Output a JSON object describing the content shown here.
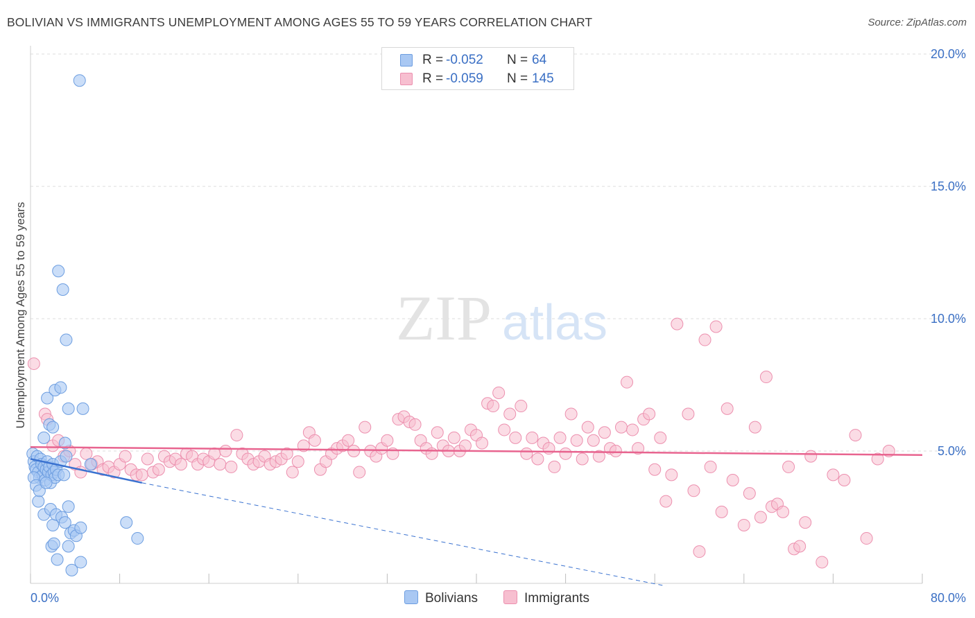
{
  "title": "BOLIVIAN VS IMMIGRANTS UNEMPLOYMENT AMONG AGES 55 TO 59 YEARS CORRELATION CHART",
  "source": "Source: ZipAtlas.com",
  "watermark": {
    "zip": "ZIP",
    "atlas": "atlas"
  },
  "legend": {
    "bolivians": {
      "r_label": "R =",
      "r_value": "-0.052",
      "n_label": "N =",
      "n_value": "64"
    },
    "immigrants": {
      "r_label": "R =",
      "r_value": "-0.059",
      "n_label": "N =",
      "n_value": "145"
    }
  },
  "bottom_legend": {
    "bolivians": "Bolivians",
    "immigrants": "Immigrants"
  },
  "colors": {
    "bolivians_fill": "#a9c8f3",
    "bolivians_stroke": "#6c9de0",
    "bolivians_line": "#3a72d0",
    "immigrants_fill": "#f7bfd0",
    "immigrants_stroke": "#ec8fae",
    "immigrants_line": "#e8648f",
    "axis_text": "#3a6fc4",
    "grid": "#dddddd"
  },
  "chart_data": {
    "type": "scatter",
    "title": "BOLIVIAN VS IMMIGRANTS UNEMPLOYMENT AMONG AGES 55 TO 59 YEARS CORRELATION CHART",
    "xlabel": "",
    "ylabel": "Unemployment Among Ages 55 to 59 years",
    "xlim": [
      0,
      80
    ],
    "ylim": [
      0,
      20
    ],
    "x_tick_labels": [
      "0.0%",
      "80.0%"
    ],
    "y_ticks": [
      5,
      10,
      15,
      20
    ],
    "y_tick_labels": [
      "5.0%",
      "10.0%",
      "15.0%",
      "20.0%"
    ],
    "grid": true,
    "series": [
      {
        "name": "Bolivians",
        "R": -0.052,
        "N": 64,
        "trend": {
          "x": [
            0,
            10
          ],
          "y": [
            4.7,
            3.8
          ]
        },
        "trend_extension": {
          "x": [
            10,
            57
          ],
          "y": [
            3.8,
            -0.1
          ]
        },
        "points": [
          [
            0.2,
            4.9
          ],
          [
            0.3,
            4.6
          ],
          [
            0.4,
            4.4
          ],
          [
            0.5,
            4.3
          ],
          [
            0.6,
            4.8
          ],
          [
            0.7,
            4.2
          ],
          [
            0.8,
            4.0
          ],
          [
            0.9,
            4.7
          ],
          [
            1.0,
            4.5
          ],
          [
            1.1,
            4.1
          ],
          [
            1.2,
            4.4
          ],
          [
            1.3,
            3.9
          ],
          [
            1.4,
            4.3
          ],
          [
            1.5,
            4.6
          ],
          [
            1.6,
            4.2
          ],
          [
            1.7,
            4.4
          ],
          [
            1.8,
            3.8
          ],
          [
            1.9,
            4.1
          ],
          [
            2.0,
            4.5
          ],
          [
            2.1,
            4.2
          ],
          [
            2.2,
            4.0
          ],
          [
            2.3,
            4.3
          ],
          [
            2.5,
            4.1
          ],
          [
            2.7,
            4.6
          ],
          [
            3.0,
            4.1
          ],
          [
            3.2,
            4.8
          ],
          [
            0.3,
            4.0
          ],
          [
            0.5,
            3.7
          ],
          [
            0.7,
            3.1
          ],
          [
            0.8,
            3.5
          ],
          [
            1.2,
            2.6
          ],
          [
            1.4,
            3.8
          ],
          [
            1.8,
            2.8
          ],
          [
            2.0,
            2.2
          ],
          [
            2.3,
            2.6
          ],
          [
            2.8,
            2.5
          ],
          [
            3.1,
            2.3
          ],
          [
            3.4,
            2.9
          ],
          [
            3.6,
            1.9
          ],
          [
            3.9,
            2.0
          ],
          [
            4.1,
            1.8
          ],
          [
            4.5,
            2.1
          ],
          [
            1.9,
            1.4
          ],
          [
            2.1,
            1.5
          ],
          [
            2.4,
            0.9
          ],
          [
            3.4,
            1.4
          ],
          [
            3.7,
            0.5
          ],
          [
            4.5,
            0.8
          ],
          [
            8.6,
            2.3
          ],
          [
            9.6,
            1.7
          ],
          [
            2.5,
            11.8
          ],
          [
            2.9,
            11.1
          ],
          [
            3.2,
            9.2
          ],
          [
            1.5,
            7.0
          ],
          [
            2.2,
            7.3
          ],
          [
            2.7,
            7.4
          ],
          [
            3.4,
            6.6
          ],
          [
            4.7,
            6.6
          ],
          [
            1.7,
            6.0
          ],
          [
            2.0,
            5.9
          ],
          [
            1.2,
            5.5
          ],
          [
            3.1,
            5.3
          ],
          [
            5.4,
            4.5
          ],
          [
            4.4,
            19.0
          ]
        ]
      },
      {
        "name": "Immigrants",
        "R": -0.059,
        "N": 145,
        "trend": {
          "x": [
            0,
            80
          ],
          "y": [
            5.15,
            4.85
          ]
        },
        "points": [
          [
            0.3,
            8.3
          ],
          [
            1.3,
            6.4
          ],
          [
            1.5,
            6.2
          ],
          [
            2.0,
            5.2
          ],
          [
            2.5,
            5.4
          ],
          [
            3.0,
            4.8
          ],
          [
            3.5,
            5.0
          ],
          [
            4.0,
            4.5
          ],
          [
            4.5,
            4.2
          ],
          [
            5.0,
            4.9
          ],
          [
            5.5,
            4.5
          ],
          [
            6.0,
            4.6
          ],
          [
            6.5,
            4.3
          ],
          [
            7.0,
            4.4
          ],
          [
            7.5,
            4.2
          ],
          [
            8.0,
            4.5
          ],
          [
            8.5,
            4.8
          ],
          [
            9.0,
            4.3
          ],
          [
            9.5,
            4.1
          ],
          [
            10.0,
            4.1
          ],
          [
            10.5,
            4.7
          ],
          [
            11.0,
            4.2
          ],
          [
            11.5,
            4.3
          ],
          [
            12.0,
            4.8
          ],
          [
            12.5,
            4.6
          ],
          [
            13.0,
            4.7
          ],
          [
            13.5,
            4.5
          ],
          [
            14.0,
            4.9
          ],
          [
            14.5,
            4.8
          ],
          [
            15.0,
            4.5
          ],
          [
            15.5,
            4.7
          ],
          [
            16.0,
            4.6
          ],
          [
            16.5,
            4.9
          ],
          [
            17.0,
            4.5
          ],
          [
            17.5,
            5.0
          ],
          [
            18.0,
            4.4
          ],
          [
            18.5,
            5.6
          ],
          [
            19.0,
            4.9
          ],
          [
            19.5,
            4.7
          ],
          [
            20.0,
            4.5
          ],
          [
            20.5,
            4.6
          ],
          [
            21.0,
            4.8
          ],
          [
            21.5,
            4.5
          ],
          [
            22.0,
            4.6
          ],
          [
            22.5,
            4.7
          ],
          [
            23.0,
            4.9
          ],
          [
            23.5,
            4.2
          ],
          [
            24.0,
            4.6
          ],
          [
            24.5,
            5.2
          ],
          [
            25.0,
            5.7
          ],
          [
            25.5,
            5.4
          ],
          [
            26.0,
            4.3
          ],
          [
            26.5,
            4.6
          ],
          [
            27.0,
            4.9
          ],
          [
            27.5,
            5.1
          ],
          [
            28.0,
            5.2
          ],
          [
            28.5,
            5.4
          ],
          [
            29.0,
            5.0
          ],
          [
            29.5,
            4.2
          ],
          [
            30.0,
            5.9
          ],
          [
            30.5,
            5.0
          ],
          [
            31.0,
            4.8
          ],
          [
            31.5,
            5.1
          ],
          [
            32.0,
            5.4
          ],
          [
            32.5,
            4.9
          ],
          [
            33.0,
            6.2
          ],
          [
            33.5,
            6.3
          ],
          [
            34.0,
            6.1
          ],
          [
            34.5,
            6.0
          ],
          [
            35.0,
            5.4
          ],
          [
            35.5,
            5.1
          ],
          [
            36.0,
            4.9
          ],
          [
            36.5,
            5.7
          ],
          [
            37.0,
            5.2
          ],
          [
            37.5,
            5.0
          ],
          [
            38.0,
            5.5
          ],
          [
            38.5,
            5.0
          ],
          [
            39.0,
            5.2
          ],
          [
            39.5,
            5.8
          ],
          [
            40.0,
            5.6
          ],
          [
            40.5,
            5.3
          ],
          [
            41.0,
            6.8
          ],
          [
            41.5,
            6.7
          ],
          [
            42.0,
            7.2
          ],
          [
            42.5,
            5.8
          ],
          [
            43.0,
            6.4
          ],
          [
            43.5,
            5.5
          ],
          [
            44.0,
            6.7
          ],
          [
            44.5,
            4.9
          ],
          [
            45.0,
            5.5
          ],
          [
            45.5,
            4.7
          ],
          [
            46.0,
            5.3
          ],
          [
            46.5,
            5.1
          ],
          [
            47.0,
            4.4
          ],
          [
            47.5,
            5.5
          ],
          [
            48.0,
            4.9
          ],
          [
            48.5,
            6.4
          ],
          [
            49.0,
            5.4
          ],
          [
            49.5,
            4.7
          ],
          [
            50.0,
            5.9
          ],
          [
            50.5,
            5.4
          ],
          [
            51.0,
            4.8
          ],
          [
            51.5,
            5.7
          ],
          [
            52.0,
            5.1
          ],
          [
            52.5,
            5.0
          ],
          [
            53.0,
            5.9
          ],
          [
            53.5,
            7.6
          ],
          [
            54.0,
            5.8
          ],
          [
            54.5,
            5.1
          ],
          [
            55.0,
            6.2
          ],
          [
            55.5,
            6.4
          ],
          [
            56.0,
            4.3
          ],
          [
            56.5,
            5.5
          ],
          [
            57.0,
            3.1
          ],
          [
            57.5,
            4.1
          ],
          [
            58.0,
            9.8
          ],
          [
            59.0,
            6.4
          ],
          [
            59.5,
            3.5
          ],
          [
            60.0,
            1.2
          ],
          [
            60.5,
            9.2
          ],
          [
            61.0,
            4.4
          ],
          [
            61.5,
            9.7
          ],
          [
            62.0,
            2.7
          ],
          [
            62.5,
            6.6
          ],
          [
            63.0,
            3.9
          ],
          [
            64.0,
            2.2
          ],
          [
            64.5,
            3.4
          ],
          [
            65.0,
            5.9
          ],
          [
            65.5,
            2.5
          ],
          [
            66.0,
            7.8
          ],
          [
            66.5,
            2.9
          ],
          [
            67.0,
            3.0
          ],
          [
            67.5,
            2.7
          ],
          [
            68.0,
            4.4
          ],
          [
            68.5,
            1.3
          ],
          [
            69.0,
            1.4
          ],
          [
            69.5,
            2.3
          ],
          [
            70.0,
            4.8
          ],
          [
            71.0,
            0.8
          ],
          [
            72.0,
            4.1
          ],
          [
            73.0,
            3.9
          ],
          [
            74.0,
            5.6
          ],
          [
            75.0,
            1.7
          ],
          [
            76.0,
            4.7
          ],
          [
            77.0,
            5.0
          ]
        ]
      }
    ]
  }
}
